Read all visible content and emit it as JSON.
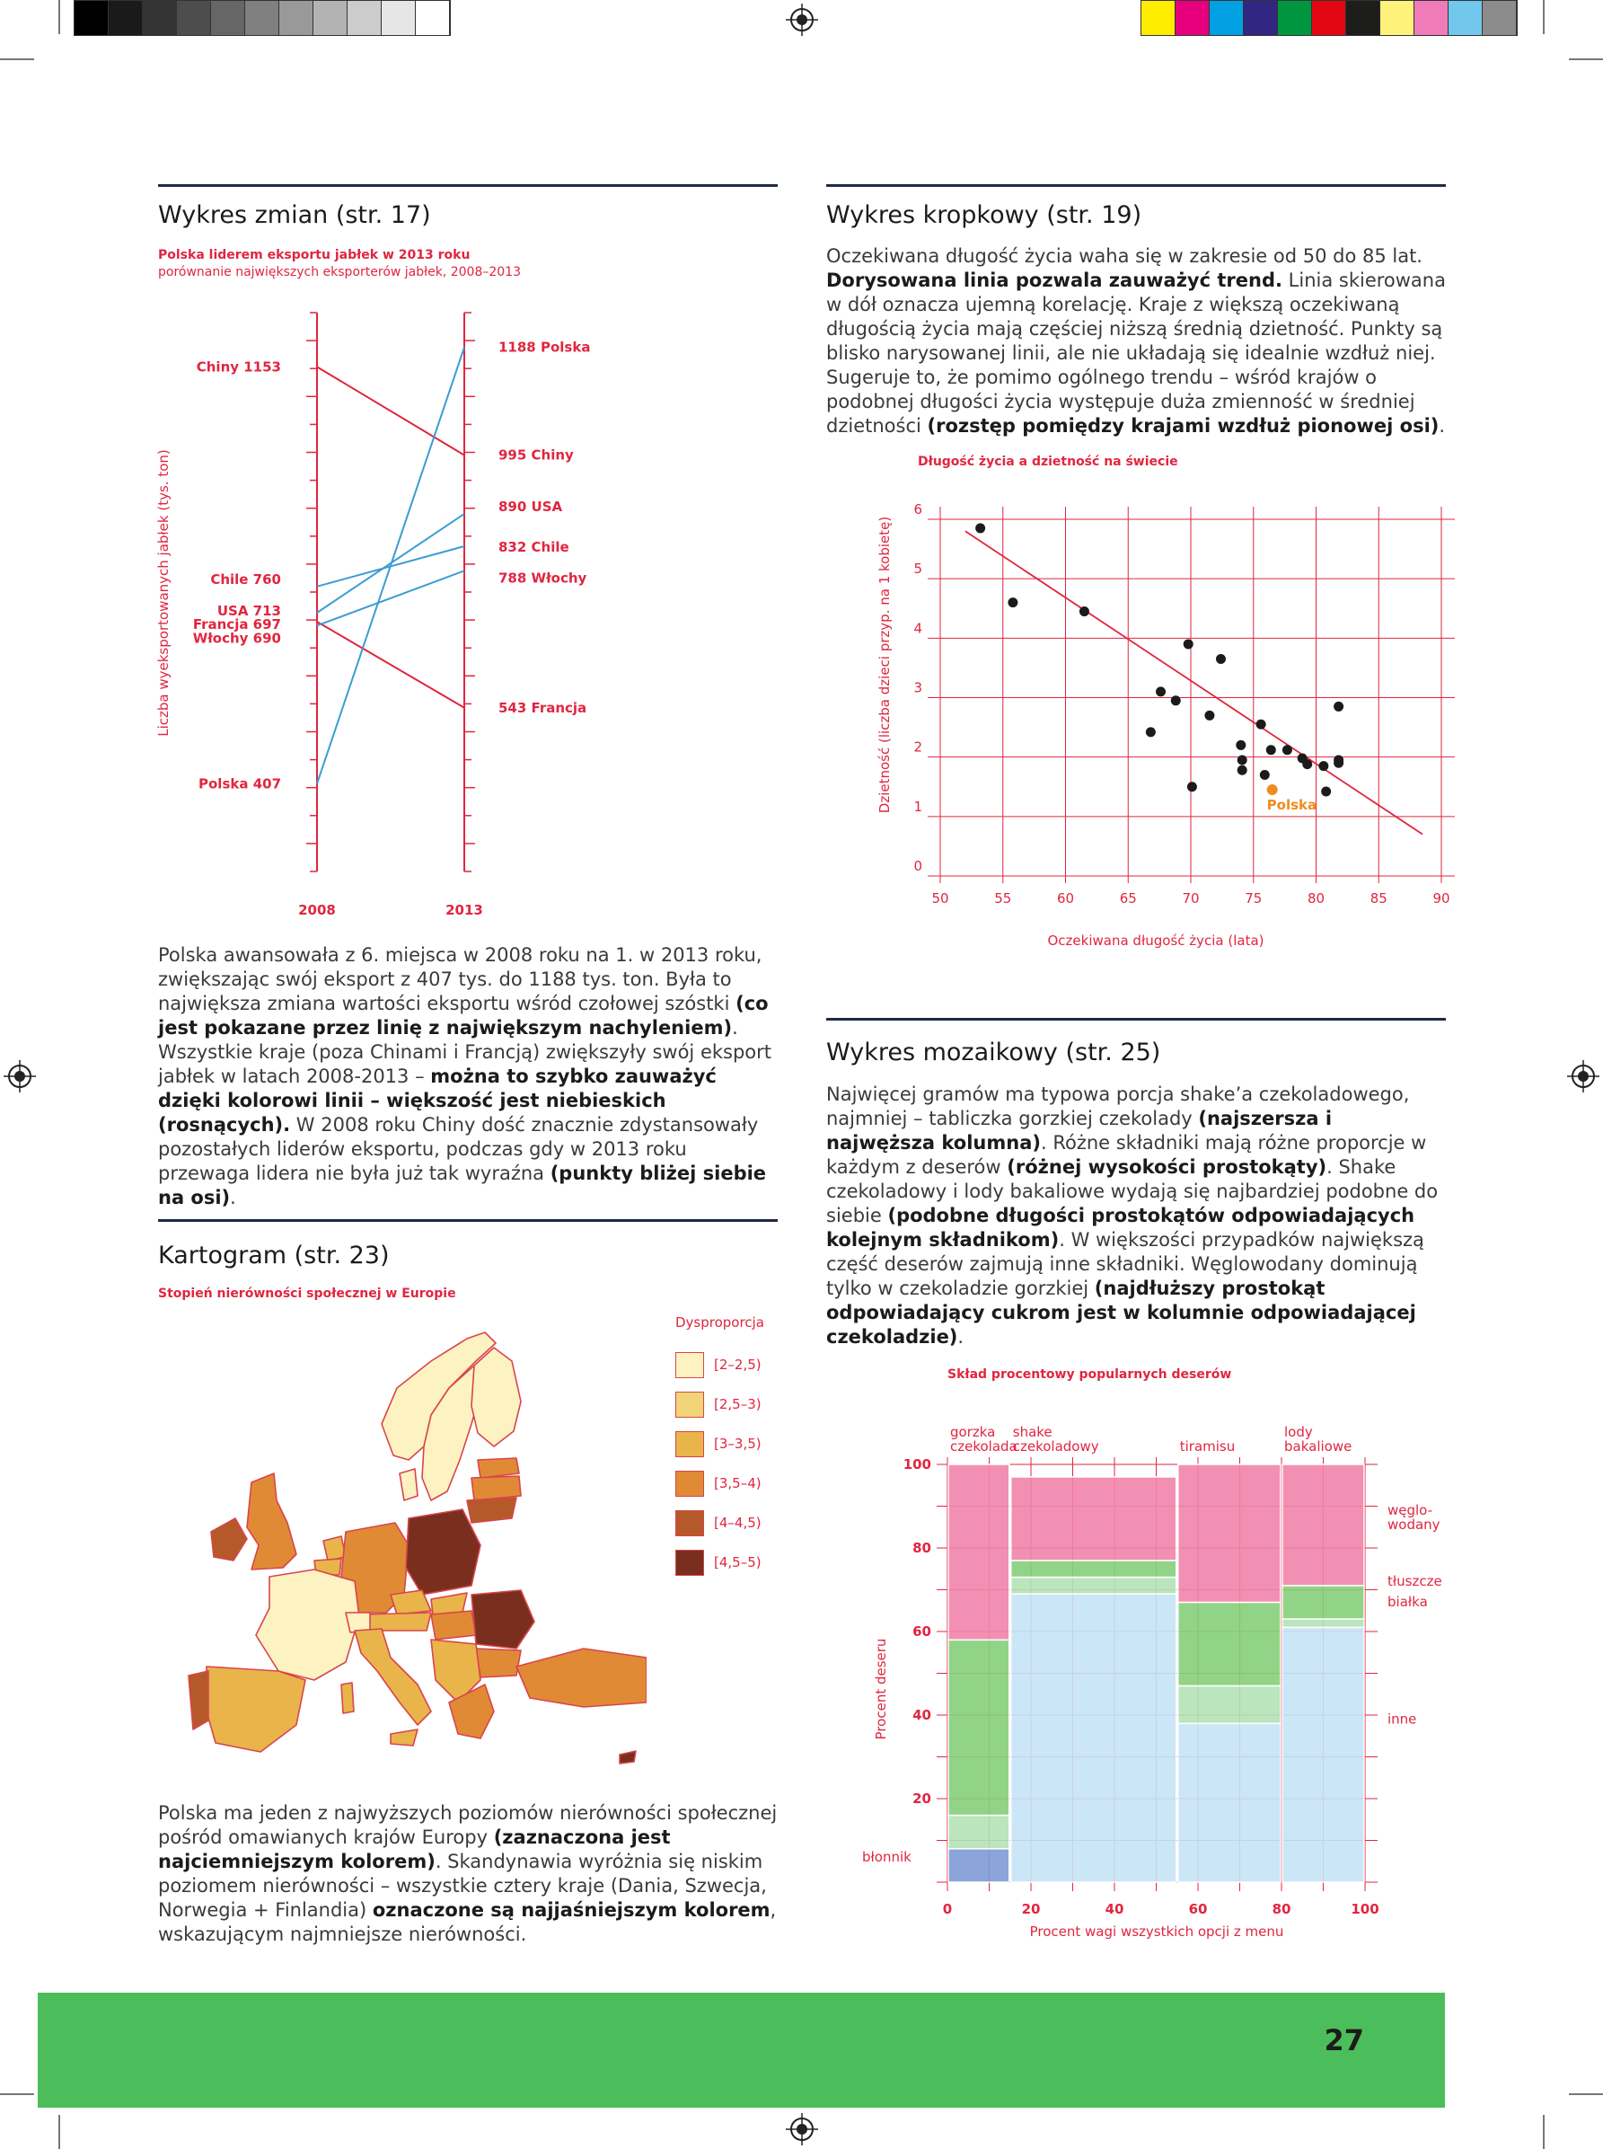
{
  "print_marks": {
    "gray_scale": [
      "#000000",
      "#1a1a1a",
      "#333333",
      "#4d4d4d",
      "#666666",
      "#808080",
      "#999999",
      "#b3b3b3",
      "#cccccc",
      "#e6e6e6",
      "#ffffff"
    ],
    "color_bar": [
      "#ffed00",
      "#e6007e",
      "#00a0e3",
      "#312783",
      "#009640",
      "#e30613",
      "#1d1d1b",
      "#fff27a",
      "#f07bb9",
      "#71c7ec",
      "#8c8c8c"
    ]
  },
  "left": {
    "section1": {
      "heading": "Wykres zmian (str. 17)",
      "chart_title": "Polska liderem eksportu jabłek w 2013 roku",
      "chart_subtitle": "porównanie największych eksporterów jabłek, 2008–2013",
      "paragraph": [
        {
          "t": "Polska awansowała z 6. miejsca w 2008 roku na 1. w 2013 roku, zwiększając swój eksport z 407 tys. do 1188 tys. ton. Była to największa zmiana wartości eksportu wśród czołowej szóstki "
        },
        {
          "b": "(co jest pokazane przez linię z największym nachyleniem)"
        },
        {
          "t": ". Wszystkie kraje (poza Chinami i Francją) zwiększyły swój eksport jabłek w latach 2008-2013 – "
        },
        {
          "b": "można to szybko zauważyć dzięki kolorowi linii – większość jest niebieskich (rosnących)."
        },
        {
          "t": " W 2008 roku Chiny dość znacznie zdystansowały pozostałych liderów eksportu, podczas gdy w 2013 roku przewaga lidera nie była już tak wyraźna "
        },
        {
          "b": "(punkty bliżej siebie na osi)"
        },
        {
          "t": "."
        }
      ]
    },
    "section3": {
      "heading": "Kartogram (str. 23)",
      "chart_title": "Stopień nierówności społecznej w Europie",
      "legend_title": "Dysproporcja",
      "legend": [
        {
          "label": "[2–2,5)",
          "color": "#fdf2c2"
        },
        {
          "label": "[2,5–3)",
          "color": "#f0d477"
        },
        {
          "label": "[3–3,5)",
          "color": "#e9b44a"
        },
        {
          "label": "[3,5–4)",
          "color": "#e08a35"
        },
        {
          "label": "[4–4,5)",
          "color": "#b5592a"
        },
        {
          "label": "[4,5–5)",
          "color": "#7a2f1e"
        }
      ],
      "paragraph": [
        {
          "t": "Polska ma jeden z najwyższych poziomów nierówności społecznej pośród omawianych krajów Europy "
        },
        {
          "b": "(zaznaczona jest najciemniejszym kolorem)"
        },
        {
          "t": ". Skandynawia wyróżnia się niskim poziomem nierówności – wszystkie cztery kraje (Dania, Szwecja, Norwegia + Finlandia) "
        },
        {
          "b": "oznaczone są najjaśniejszym kolorem"
        },
        {
          "t": ", wskazującym najmniejsze nierówności."
        }
      ]
    }
  },
  "right": {
    "section2": {
      "heading": "Wykres kropkowy (str. 19)",
      "paragraph": [
        {
          "t": "Oczekiwana długość życia waha się w zakresie od 50 do 85 lat. "
        },
        {
          "b": "Dorysowana linia pozwala zauważyć trend."
        },
        {
          "t": " Linia skierowana w dół oznacza ujemną korelację. Kraje z większą oczekiwaną długością życia mają częściej niższą średnią dzietność. Punkty są blisko narysowanej linii, ale nie układają się idealnie wzdłuż niej. Sugeruje to, że pomimo ogólnego trendu – wśród krajów o podobnej długości życia występuje duża zmienność w średniej dzietności "
        },
        {
          "b": "(rozstęp pomiędzy krajami wzdłuż pionowej osi)"
        },
        {
          "t": "."
        }
      ]
    },
    "section4": {
      "heading": "Wykres mozaikowy (str. 25)",
      "paragraph": [
        {
          "t": "Najwięcej gramów ma typowa porcja shake’a czekoladowego, najmniej – tabliczka gorzkiej czekolady "
        },
        {
          "b": "(najszersza i najwęższa kolumna)"
        },
        {
          "t": ". Różne składniki mają różne proporcje w każdym z deserów "
        },
        {
          "b": "(różnej wysokości prostokąty)"
        },
        {
          "t": ". Shake czekoladowy i lody bakaliowe wydają się najbardziej podobne do siebie "
        },
        {
          "b": "(podobne długości prostokątów odpowiadających kolejnym składnikom)"
        },
        {
          "t": ". W większości przypadków największą część deserów zajmują inne składniki. Węglowodany dominują tylko w czekoladzie gorzkiej "
        },
        {
          "b": "(najdłuższy prostokąt odpowiadający cukrom jest w kolumnie odpowiadającej czekoladzie)"
        },
        {
          "t": "."
        }
      ]
    }
  },
  "chart_data": [
    {
      "type": "line",
      "subtype": "slope",
      "title": "Polska liderem eksportu jabłek w 2013 roku",
      "subtitle": "porównanie największych eksporterów jabłek, 2008–2013",
      "ylabel": "Liczba wyeksportowanych jabłek (tys. ton)",
      "x": [
        "2008",
        "2013"
      ],
      "ylim": [
        250,
        1250
      ],
      "series": [
        {
          "name": "Chiny",
          "values": [
            1153,
            995
          ],
          "label_2008": "Chiny 1153",
          "label_2013": "995 Chiny",
          "color": "#e0263f"
        },
        {
          "name": "Chile",
          "values": [
            760,
            832
          ],
          "label_2008": "Chile 760",
          "label_2013": "832 Chile",
          "color": "#3b9cd4"
        },
        {
          "name": "USA",
          "values": [
            713,
            890
          ],
          "label_2008": "USA 713",
          "label_2013": "890 USA",
          "color": "#3b9cd4"
        },
        {
          "name": "Francja",
          "values": [
            697,
            543
          ],
          "label_2008": "Francja 697",
          "label_2013": "543 Francja",
          "color": "#e0263f"
        },
        {
          "name": "Włochy",
          "values": [
            690,
            788
          ],
          "label_2008": "Włochy 690",
          "label_2013": "788 Włochy",
          "color": "#3b9cd4"
        },
        {
          "name": "Polska",
          "values": [
            407,
            1188
          ],
          "label_2008": "Polska 407",
          "label_2013": "1188 Polska",
          "color": "#3b9cd4"
        }
      ]
    },
    {
      "type": "scatter",
      "title": "Długość życia a dzietność na świecie",
      "xlabel": "Oczekiwana długość życia (lata)",
      "ylabel": "Dzietność (liczba dzieci przyp. na 1 kobietę)",
      "xlim": [
        50,
        90
      ],
      "ylim": [
        0,
        6
      ],
      "xticks": [
        50,
        55,
        60,
        65,
        70,
        75,
        80,
        85,
        90
      ],
      "yticks": [
        0,
        1,
        2,
        3,
        4,
        5,
        6
      ],
      "trend": [
        [
          52,
          5.8
        ],
        [
          88.5,
          0.7
        ]
      ],
      "highlight": {
        "label": "Polska",
        "x": 76.5,
        "y": 1.45,
        "color": "#f08c1e"
      },
      "points": [
        [
          53.2,
          5.85
        ],
        [
          55.8,
          4.6
        ],
        [
          61.5,
          4.45
        ],
        [
          66.8,
          2.42
        ],
        [
          67.6,
          3.1
        ],
        [
          68.8,
          2.95
        ],
        [
          69.8,
          3.9
        ],
        [
          70.1,
          1.5
        ],
        [
          71.5,
          2.7
        ],
        [
          72.4,
          3.65
        ],
        [
          74.0,
          2.2
        ],
        [
          74.1,
          1.95
        ],
        [
          74.1,
          1.78
        ],
        [
          75.6,
          2.55
        ],
        [
          75.9,
          1.7
        ],
        [
          76.4,
          2.12
        ],
        [
          77.7,
          2.12
        ],
        [
          78.9,
          1.98
        ],
        [
          79.3,
          1.88
        ],
        [
          80.6,
          1.85
        ],
        [
          80.8,
          1.42
        ],
        [
          81.8,
          2.85
        ],
        [
          81.8,
          1.95
        ],
        [
          81.8,
          1.9
        ]
      ]
    },
    {
      "type": "mosaic",
      "title": "Skład procentowy popularnych deserów",
      "xlabel": "Procent wagi wszystkich opcji z menu",
      "ylabel": "Procent deseru",
      "xlim": [
        0,
        100
      ],
      "ylim": [
        0,
        100
      ],
      "xticks": [
        0,
        20,
        40,
        60,
        80,
        100
      ],
      "yticks": [
        20,
        40,
        60,
        80,
        100
      ],
      "components": [
        {
          "name": "błonnik",
          "color": "#7e9ad6"
        },
        {
          "name": "białka",
          "color": "#b4e2b6"
        },
        {
          "name": "tłuszcze",
          "color": "#86cf7a"
        },
        {
          "name": "węglowodany",
          "color": "#f184ab"
        },
        {
          "name": "inne",
          "color": "#c5e3f5"
        }
      ],
      "component_labels": [
        "węglo-wodany",
        "tłuszcze",
        "białka",
        "inne",
        "błonnik"
      ],
      "columns": [
        {
          "label": "gorzka czekolada",
          "width": 15,
          "parts": {
            "błonnik": 8,
            "białka": 8,
            "tłuszcze": 42,
            "inne": 0,
            "węglowodany": 42
          }
        },
        {
          "label": "shake czekoladowy",
          "width": 40,
          "parts": {
            "błonnik": 0,
            "inne": 69,
            "białka": 4,
            "tłuszcze": 4,
            "węglowodany": 20
          }
        },
        {
          "label": "tiramisu",
          "width": 25,
          "parts": {
            "błonnik": 0,
            "inne": 38,
            "białka": 9,
            "tłuszcze": 20,
            "węglowodany": 33
          }
        },
        {
          "label": "lody bakaliowe",
          "width": 20,
          "parts": {
            "błonnik": 0,
            "inne": 61,
            "białka": 2,
            "tłuszcze": 8,
            "węglowodany": 29
          }
        }
      ]
    }
  ],
  "footer": {
    "page_number": "27",
    "color": "#4bbd5a"
  }
}
